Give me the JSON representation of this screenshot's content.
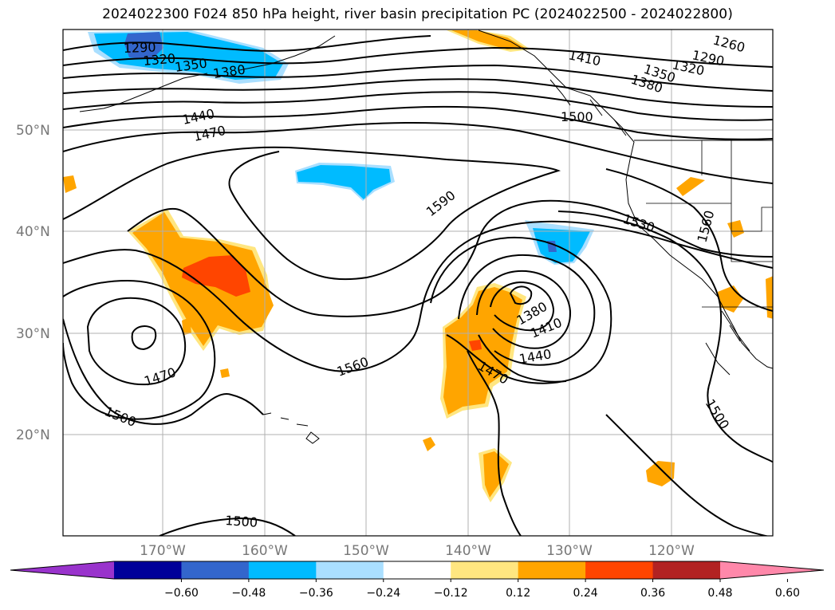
{
  "title": "2024022300 F024 850 hPa height, river basin precipitation PC (2024022500 - 2024022800)",
  "map": {
    "lat_labels": [
      "50°N",
      "40°N",
      "30°N",
      "20°N"
    ],
    "lon_labels": [
      "170°W",
      "160°W",
      "150°W",
      "140°W",
      "130°W",
      "120°W"
    ],
    "contour_labels": [
      "1290",
      "1320",
      "1350",
      "1380",
      "1440",
      "1470",
      "1260",
      "1290",
      "1320",
      "1350",
      "1380",
      "1410",
      "1500",
      "1590",
      "1530",
      "1560",
      "1560",
      "1470",
      "1500",
      "1380",
      "1410",
      "1440",
      "1470",
      "1500",
      "1500"
    ],
    "colors": {
      "contour": "#000000",
      "coast": "#000000",
      "grid": "#b0b0b0"
    }
  },
  "colorbar": {
    "bins": [
      "#9933cc",
      "#000099",
      "#3366cc",
      "#00bbff",
      "#aadfff",
      "#ffffff",
      "#ffe680",
      "#ffa500",
      "#ff4500",
      "#b22222",
      "#ff88aa"
    ],
    "ticks": [
      "−0.60",
      "−0.48",
      "−0.36",
      "−0.24",
      "−0.12",
      "0.12",
      "0.24",
      "0.36",
      "0.48",
      "0.60"
    ]
  }
}
